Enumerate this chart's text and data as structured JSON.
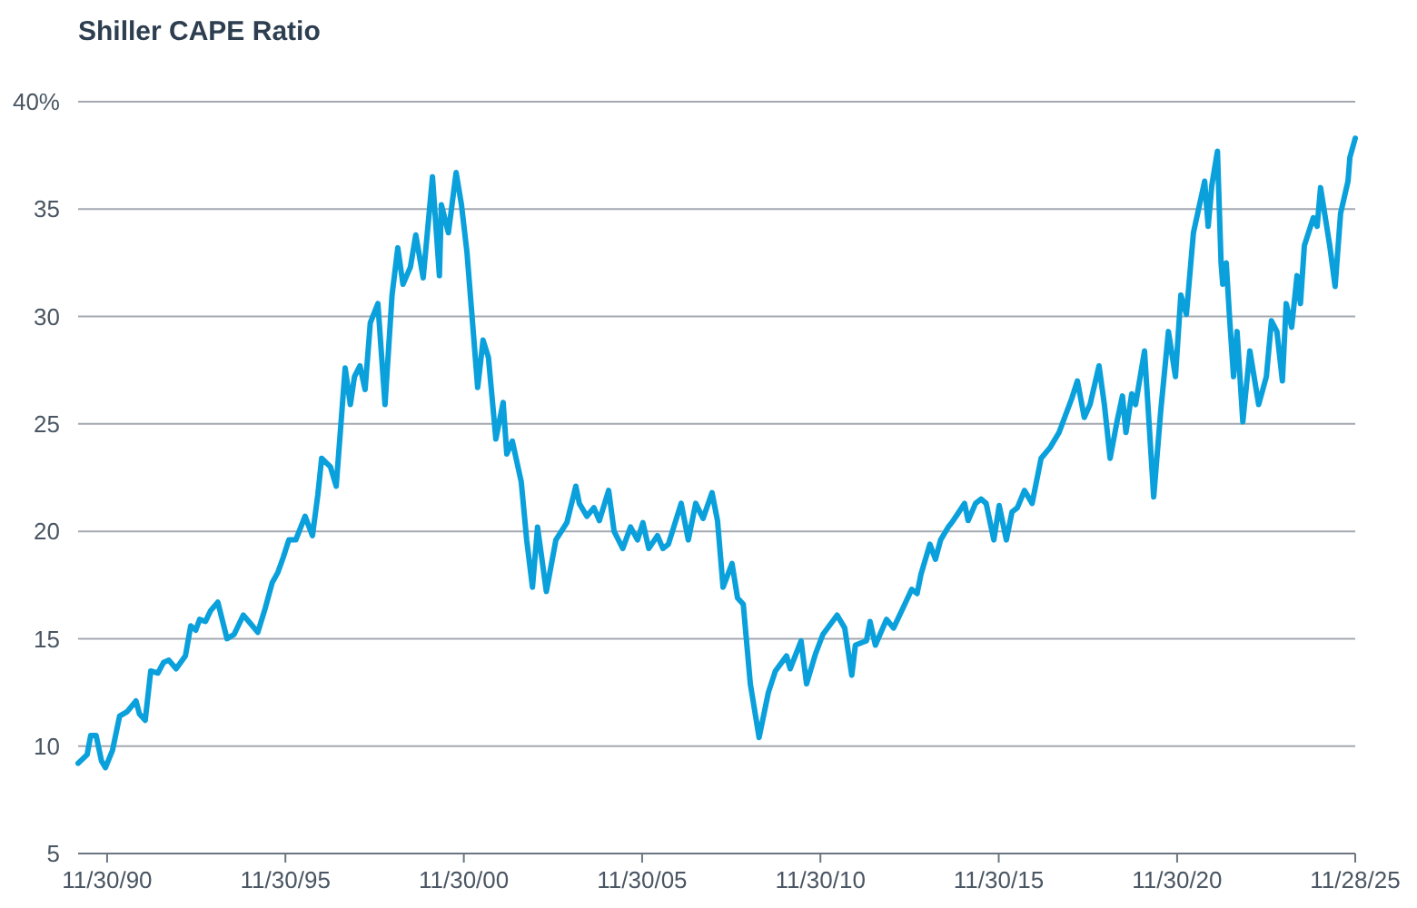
{
  "chart_data": {
    "type": "line",
    "title": "Shiller CAPE Ratio",
    "x": [
      "1990-02-06",
      "1990-05-09",
      "1990-06-15",
      "1990-08-09",
      "1990-10-04",
      "1990-11-13",
      "1991-01-24",
      "1991-04-07",
      "1991-06-22",
      "1991-09-22",
      "1991-10-27",
      "1991-12-25",
      "1992-02-20",
      "1992-05-03",
      "1992-07-01",
      "1992-08-23",
      "1992-11-06",
      "1993-02-09",
      "1993-04-04",
      "1993-05-26",
      "1993-07-04",
      "1993-09-02",
      "1993-10-24",
      "1994-01-07",
      "1994-04-11",
      "1994-06-22",
      "1994-09-25",
      "1994-11-20",
      "1995-02-20",
      "1995-05-06",
      "1995-07-17",
      "1995-09-15",
      "1995-11-09",
      "1996-01-04",
      "1996-03-15",
      "1996-06-18",
      "1996-09-02",
      "1996-10-27",
      "1996-12-05",
      "1997-03-05",
      "1997-05-03",
      "1997-08-03",
      "1997-09-25",
      "1997-11-06",
      "1998-01-01",
      "1998-02-23",
      "1998-04-17",
      "1998-07-04",
      "1998-09-15",
      "1998-11-26",
      "1999-01-24",
      "1999-03-18",
      "1999-06-02",
      "1999-07-27",
      "1999-10-11",
      "2000-01-14",
      "2000-03-25",
      "2000-04-14",
      "2000-06-25",
      "2000-09-12",
      "2000-11-06",
      "2001-01-01",
      "2001-04-21",
      "2001-06-15",
      "2001-08-09",
      "2001-10-24",
      "2002-01-07",
      "2002-02-13",
      "2002-04-11",
      "2002-07-11",
      "2002-09-05",
      "2002-11-03",
      "2002-12-25",
      "2003-03-25",
      "2003-07-01",
      "2003-10-21",
      "2004-01-21",
      "2004-02-26",
      "2004-05-13",
      "2004-07-24",
      "2004-09-18",
      "2004-12-22",
      "2005-02-16",
      "2005-05-16",
      "2005-08-03",
      "2005-10-14",
      "2005-12-08",
      "2006-02-06",
      "2006-05-06",
      "2006-07-01",
      "2006-08-26",
      "2007-01-04",
      "2007-03-18",
      "2007-06-02",
      "2007-08-16",
      "2007-11-16",
      "2008-01-11",
      "2008-03-08",
      "2008-06-08",
      "2008-08-03",
      "2008-10-01",
      "2008-12-12",
      "2009-03-12",
      "2009-06-15",
      "2009-08-26",
      "2009-12-18",
      "2010-01-24",
      "2010-05-16",
      "2010-07-11",
      "2010-10-11",
      "2010-12-25",
      "2011-05-20",
      "2011-08-06",
      "2011-10-17",
      "2011-11-23",
      "2012-03-15",
      "2012-04-21",
      "2012-06-15",
      "2012-10-07",
      "2012-12-18",
      "2013-03-22",
      "2013-06-22",
      "2013-08-16",
      "2013-09-25",
      "2013-12-25",
      "2014-02-20",
      "2014-04-14",
      "2014-07-01",
      "2014-08-06",
      "2014-10-04",
      "2014-12-15",
      "2015-01-21",
      "2015-04-07",
      "2015-06-02",
      "2015-07-24",
      "2015-10-11",
      "2015-12-05",
      "2016-02-16",
      "2016-04-14",
      "2016-06-08",
      "2016-08-20",
      "2016-11-06",
      "2017-02-06",
      "2017-05-09",
      "2017-08-09",
      "2017-12-18",
      "2018-02-13",
      "2018-04-24",
      "2018-06-22",
      "2018-09-22",
      "2018-11-16",
      "2019-01-14",
      "2019-03-25",
      "2019-05-20",
      "2019-06-25",
      "2019-08-23",
      "2019-10-01",
      "2020-01-01",
      "2020-04-04",
      "2020-06-15",
      "2020-09-02",
      "2020-11-13",
      "2021-01-07",
      "2021-03-05",
      "2021-05-16",
      "2021-09-08",
      "2021-10-14",
      "2021-11-20",
      "2022-01-17",
      "2022-02-23",
      "2022-03-12",
      "2022-04-17",
      "2022-05-23",
      "2022-07-01",
      "2022-08-06",
      "2022-10-04",
      "2022-12-15",
      "2023-03-15",
      "2023-06-02",
      "2023-07-24",
      "2023-09-18",
      "2023-11-13",
      "2023-12-22",
      "2024-02-16",
      "2024-04-11",
      "2024-05-16",
      "2024-06-25",
      "2024-09-25",
      "2024-11-03",
      "2024-12-08",
      "2025-03-12",
      "2025-05-06",
      "2025-07-01",
      "2025-09-15",
      "2025-10-04",
      "2025-11-28"
    ],
    "series": [
      {
        "color": "#0aa0dc",
        "values": [
          9.2,
          9.6,
          10.5,
          10.5,
          9.3,
          9.0,
          9.8,
          11.4,
          11.6,
          12.1,
          11.5,
          11.2,
          13.5,
          13.4,
          13.9,
          14.0,
          13.6,
          14.2,
          15.6,
          15.4,
          15.9,
          15.8,
          16.3,
          16.7,
          15.0,
          15.2,
          16.1,
          15.8,
          15.3,
          16.4,
          17.6,
          18.1,
          18.8,
          19.6,
          19.6,
          20.7,
          19.8,
          21.7,
          23.4,
          23.0,
          22.1,
          27.6,
          25.9,
          27.2,
          27.7,
          26.6,
          29.7,
          30.6,
          25.9,
          31.0,
          33.2,
          31.5,
          32.3,
          33.8,
          31.8,
          36.5,
          31.9,
          35.2,
          33.9,
          36.7,
          35.2,
          33.0,
          26.7,
          28.9,
          28.1,
          24.3,
          26.0,
          23.6,
          24.2,
          22.3,
          19.6,
          17.4,
          20.2,
          17.2,
          19.6,
          20.4,
          22.1,
          21.3,
          20.7,
          21.1,
          20.5,
          21.9,
          20.0,
          19.2,
          20.2,
          19.6,
          20.4,
          19.2,
          19.8,
          19.2,
          19.4,
          21.3,
          19.6,
          21.3,
          20.6,
          21.8,
          20.5,
          17.4,
          18.5,
          16.9,
          16.6,
          12.9,
          10.4,
          12.5,
          13.5,
          14.2,
          13.6,
          14.9,
          12.9,
          14.3,
          15.2,
          16.1,
          15.5,
          13.3,
          14.7,
          14.9,
          15.8,
          14.7,
          15.9,
          15.5,
          16.4,
          17.3,
          17.1,
          18.0,
          19.4,
          18.7,
          19.6,
          20.2,
          20.4,
          20.8,
          21.3,
          20.5,
          21.3,
          21.5,
          21.3,
          19.6,
          21.2,
          19.6,
          20.9,
          21.1,
          21.9,
          21.3,
          23.4,
          23.9,
          24.6,
          26.2,
          27.0,
          25.3,
          25.9,
          27.7,
          25.9,
          23.4,
          25.1,
          26.3,
          24.6,
          26.4,
          25.9,
          28.4,
          21.6,
          25.6,
          29.3,
          27.2,
          31.0,
          30.1,
          33.9,
          36.3,
          34.2,
          36.1,
          37.7,
          32.5,
          31.5,
          32.5,
          29.8,
          27.2,
          29.3,
          25.1,
          28.4,
          25.9,
          27.2,
          29.8,
          29.3,
          27.0,
          30.6,
          29.5,
          31.9,
          30.6,
          33.3,
          34.6,
          34.2,
          36.0,
          33.3,
          31.4,
          34.8,
          36.3,
          37.4,
          38.3
        ]
      }
    ],
    "xlim": [
      "1990-02-06",
      "2025-11-28"
    ],
    "xticks": [
      {
        "value": "1990-11-30",
        "label": "11/30/90"
      },
      {
        "value": "1995-11-30",
        "label": "11/30/95"
      },
      {
        "value": "2000-11-30",
        "label": "11/30/00"
      },
      {
        "value": "2005-11-30",
        "label": "11/30/05"
      },
      {
        "value": "2010-11-30",
        "label": "11/30/10"
      },
      {
        "value": "2015-11-30",
        "label": "11/30/15"
      },
      {
        "value": "2020-11-30",
        "label": "11/30/20"
      },
      {
        "value": "2025-11-28",
        "label": "11/28/25"
      }
    ],
    "ylim": [
      5,
      40
    ],
    "yticks": [
      5,
      10,
      15,
      20,
      25,
      30,
      35,
      {
        "value": 40,
        "label": "40%"
      }
    ],
    "grid": "y",
    "marker": "none",
    "line_style": "solid"
  }
}
